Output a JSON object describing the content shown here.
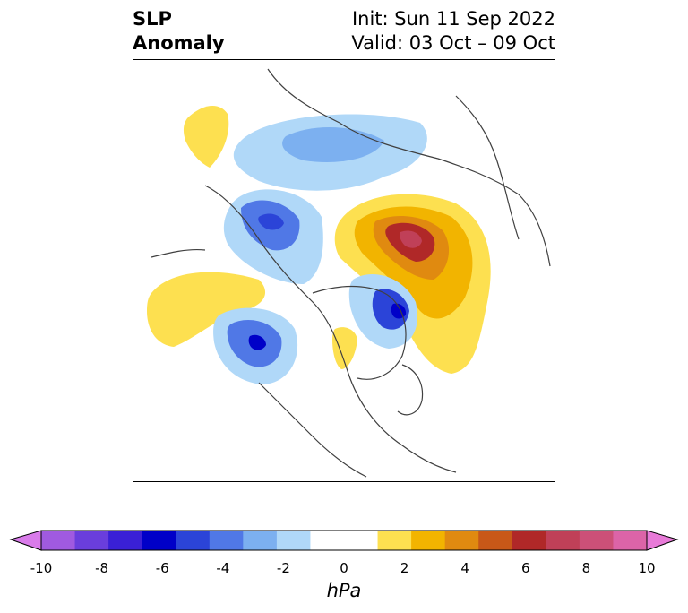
{
  "title": {
    "left_line1": "SLP",
    "left_line2": "Anomaly",
    "right_line1": "Init: Sun 11 Sep 2022",
    "right_line2": "Valid: 03 Oct – 09 Oct"
  },
  "colorbar": {
    "unit": "hPa",
    "ticks": [
      "-10",
      "-8",
      "-6",
      "-4",
      "-2",
      "0",
      "2",
      "4",
      "6",
      "8",
      "10"
    ],
    "colors": [
      "#d97bea",
      "#a05ae0",
      "#6a3edc",
      "#3a20d6",
      "#0000c8",
      "#2b44d8",
      "#5078e6",
      "#7cb0f0",
      "#b0d8f8",
      "#ffffff",
      "#ffffff",
      "#fde050",
      "#f2b400",
      "#e08a10",
      "#c85818",
      "#b02828",
      "#c04058",
      "#cc5078",
      "#dc64a8",
      "#e87ad8"
    ]
  },
  "map": {
    "projection": "North Polar Stereographic",
    "field": "Sea level pressure anomaly",
    "colors": {
      "positive_high": "#c04058",
      "positive_mid": "#e08a10",
      "positive_low": "#fde050",
      "negative_low": "#b0d8f8",
      "negative_mid": "#5078e6",
      "negative_high": "#0000c8",
      "coastline": "#404040"
    }
  }
}
